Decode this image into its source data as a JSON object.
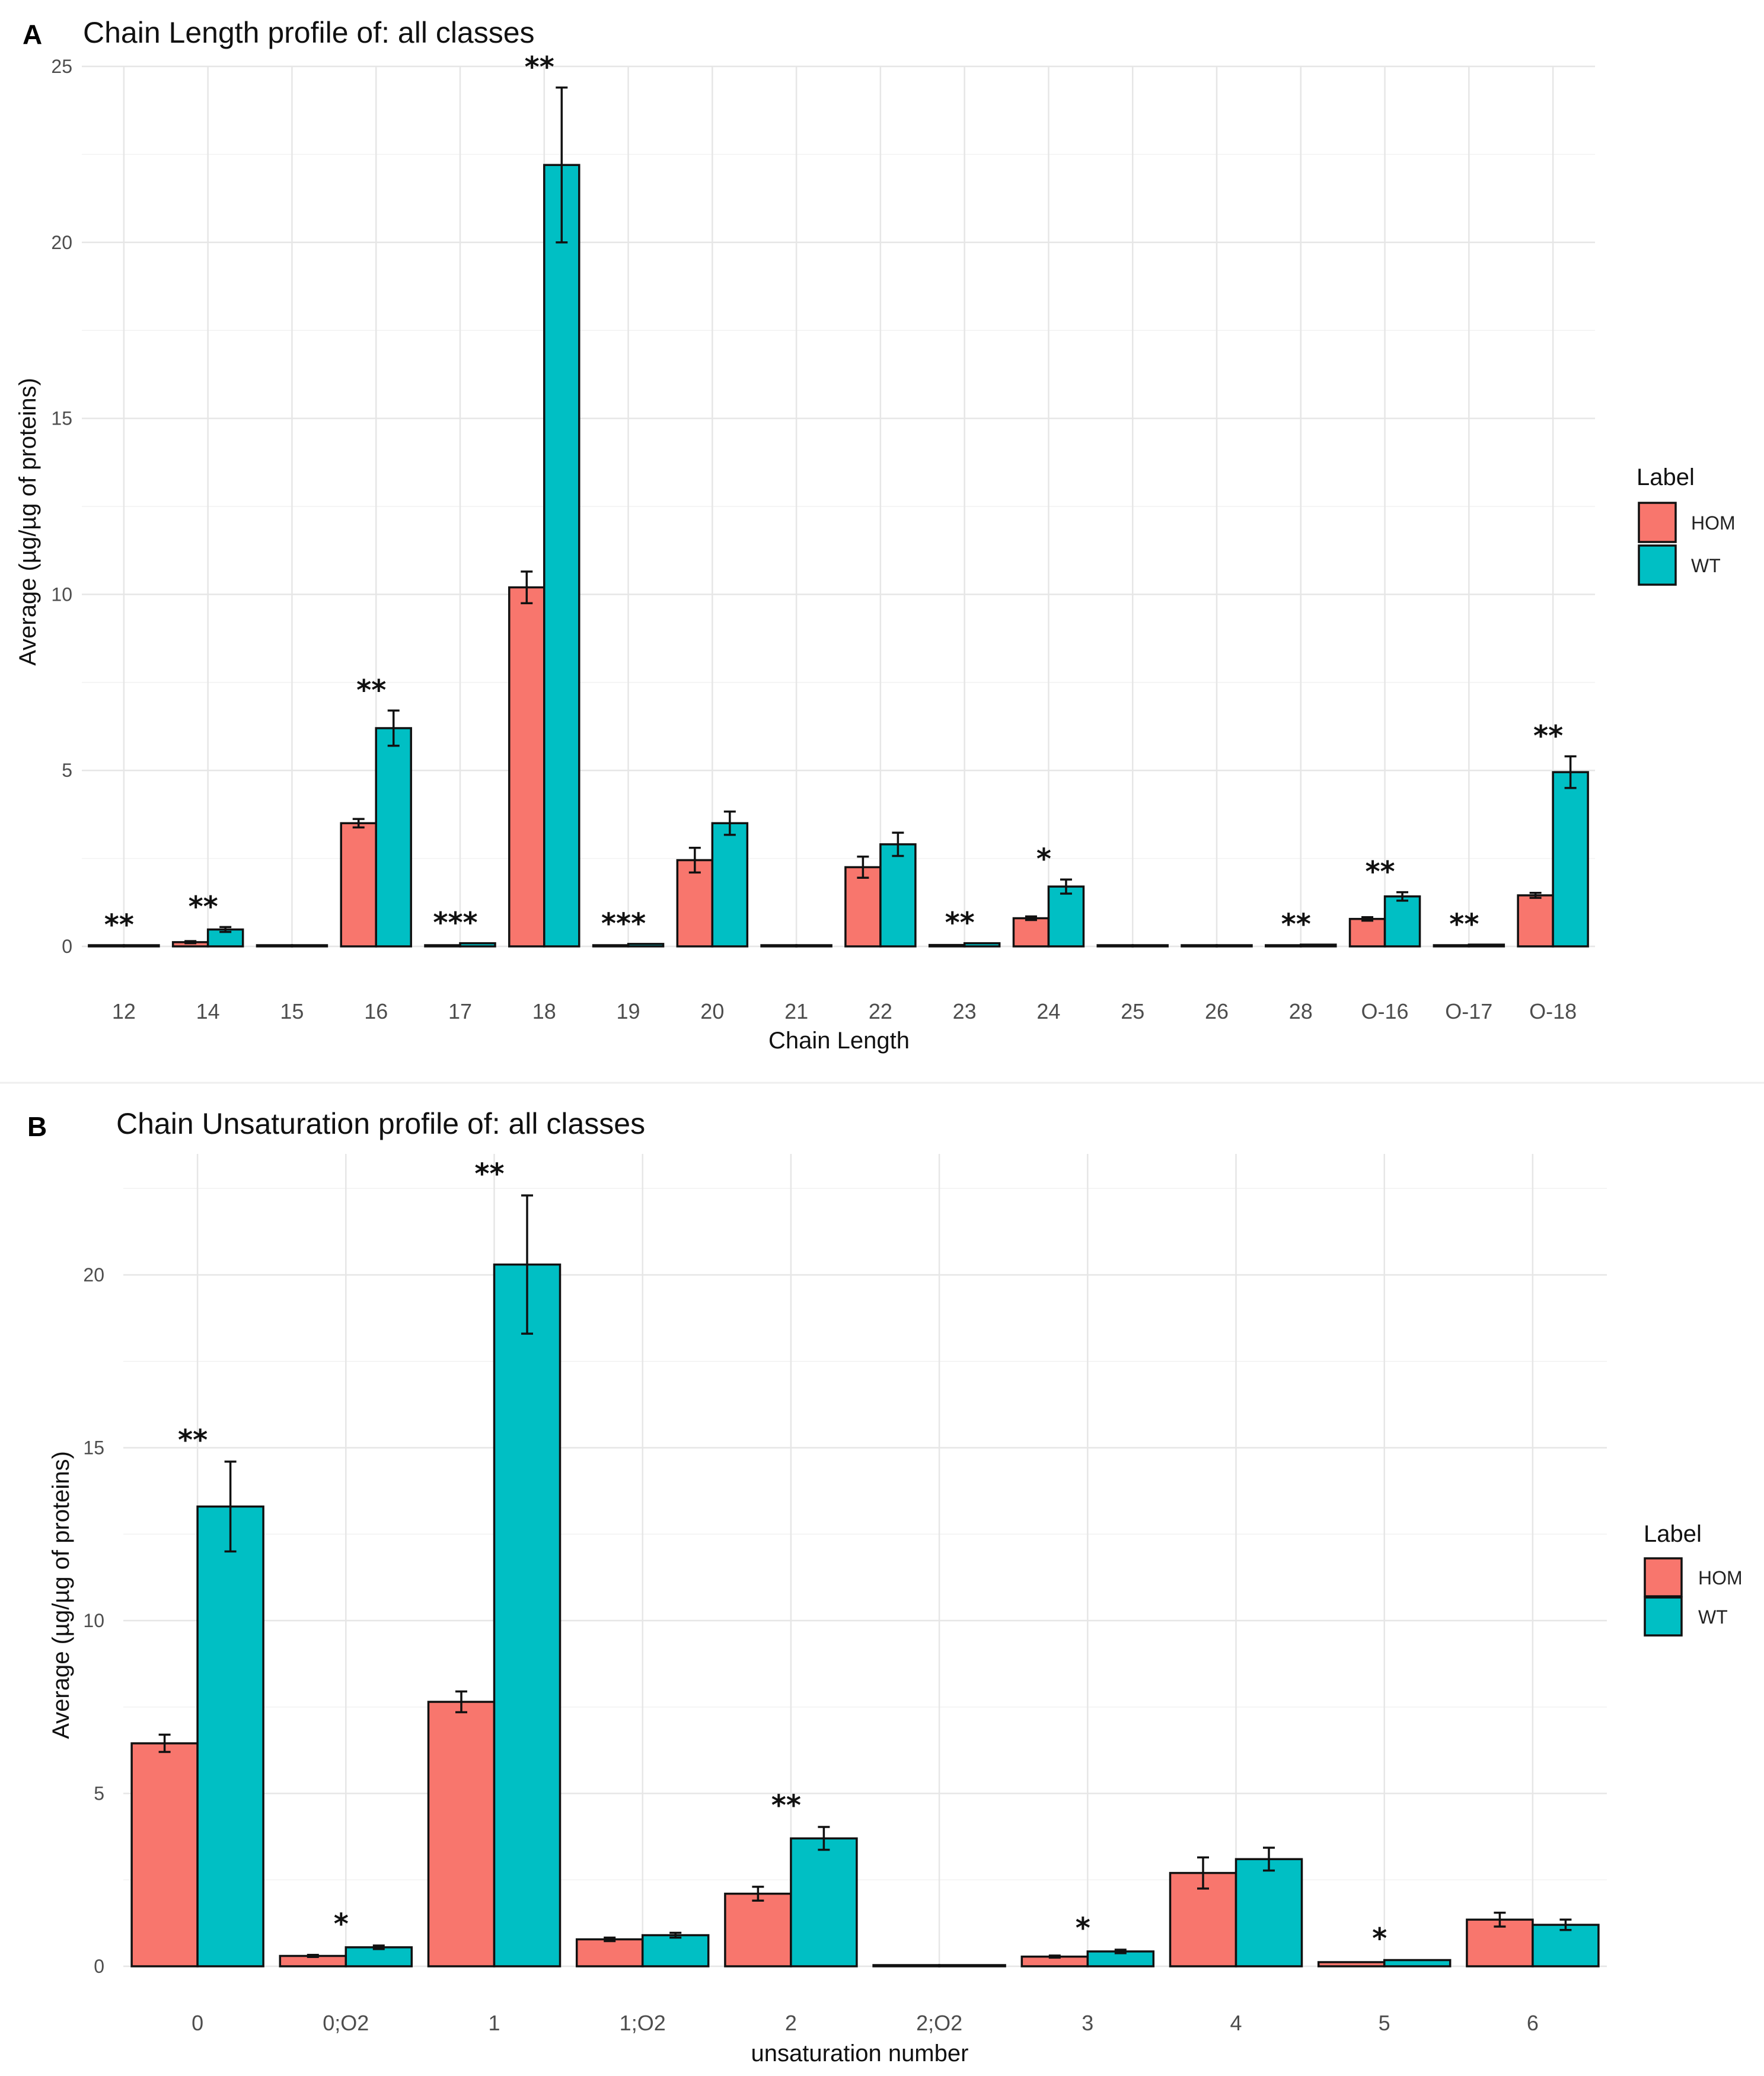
{
  "colors": {
    "HOM": "#f8766d",
    "WT": "#00bfc4"
  },
  "chart_data": [
    {
      "panel": "A",
      "type": "bar",
      "title": "Chain Length profile of: all classes",
      "xlabel": "Chain Length",
      "ylabel": "Average (µg/µg of proteins)",
      "ylim": [
        0,
        25
      ],
      "yticks": [
        0,
        5,
        10,
        15,
        20,
        25
      ],
      "legend": {
        "title": "Label",
        "position": "right",
        "entries": [
          "HOM",
          "WT"
        ]
      },
      "categories": [
        "12",
        "14",
        "15",
        "16",
        "17",
        "18",
        "19",
        "20",
        "21",
        "22",
        "23",
        "24",
        "25",
        "26",
        "28",
        "O-16",
        "O-17",
        "O-18"
      ],
      "series": [
        {
          "name": "HOM",
          "values": [
            0.02,
            0.12,
            0.01,
            3.5,
            0.03,
            10.2,
            0.03,
            2.45,
            0.01,
            2.25,
            0.04,
            0.8,
            0.01,
            0.01,
            0.02,
            0.78,
            0.02,
            1.45
          ],
          "errors": [
            0.01,
            0.03,
            0.0,
            0.12,
            0.01,
            0.45,
            0.01,
            0.35,
            0.0,
            0.3,
            0.01,
            0.05,
            0.0,
            0.0,
            0.01,
            0.05,
            0.01,
            0.07
          ]
        },
        {
          "name": "WT",
          "values": [
            0.03,
            0.48,
            0.01,
            6.2,
            0.09,
            22.2,
            0.07,
            3.5,
            0.01,
            2.9,
            0.09,
            1.7,
            0.01,
            0.02,
            0.05,
            1.42,
            0.05,
            4.95
          ],
          "errors": [
            0.01,
            0.07,
            0.0,
            0.5,
            0.02,
            2.2,
            0.02,
            0.33,
            0.0,
            0.33,
            0.02,
            0.2,
            0.0,
            0.0,
            0.01,
            0.12,
            0.01,
            0.45
          ]
        }
      ],
      "significance": [
        "**",
        "**",
        "",
        "**",
        "***",
        "**",
        "***",
        "",
        "",
        "",
        "**",
        "*",
        "",
        "",
        "**",
        "**",
        "**",
        "**"
      ]
    },
    {
      "panel": "B",
      "type": "bar",
      "title": "Chain Unsaturation profile of: all classes",
      "xlabel": "unsaturation number",
      "ylabel": "Average (µg/µg of proteins)",
      "ylim": [
        0,
        23.5
      ],
      "yticks": [
        0,
        5,
        10,
        15,
        20
      ],
      "legend": {
        "title": "Label",
        "position": "right",
        "entries": [
          "HOM",
          "WT"
        ]
      },
      "categories": [
        "0",
        "0;O2",
        "1",
        "1;O2",
        "2",
        "2;O2",
        "3",
        "4",
        "5",
        "6"
      ],
      "series": [
        {
          "name": "HOM",
          "values": [
            6.45,
            0.3,
            7.65,
            0.78,
            2.1,
            0.02,
            0.28,
            2.7,
            0.12,
            1.35
          ],
          "errors": [
            0.25,
            0.03,
            0.3,
            0.05,
            0.2,
            0.0,
            0.03,
            0.45,
            0.02,
            0.2
          ]
        },
        {
          "name": "WT",
          "values": [
            13.3,
            0.55,
            20.3,
            0.9,
            3.7,
            0.03,
            0.43,
            3.1,
            0.18,
            1.2
          ],
          "errors": [
            1.3,
            0.05,
            2.0,
            0.07,
            0.33,
            0.0,
            0.05,
            0.33,
            0.02,
            0.15
          ]
        }
      ],
      "significance": [
        "**",
        "*",
        "**",
        "",
        "**",
        "",
        "*",
        "",
        "*",
        ""
      ]
    }
  ]
}
